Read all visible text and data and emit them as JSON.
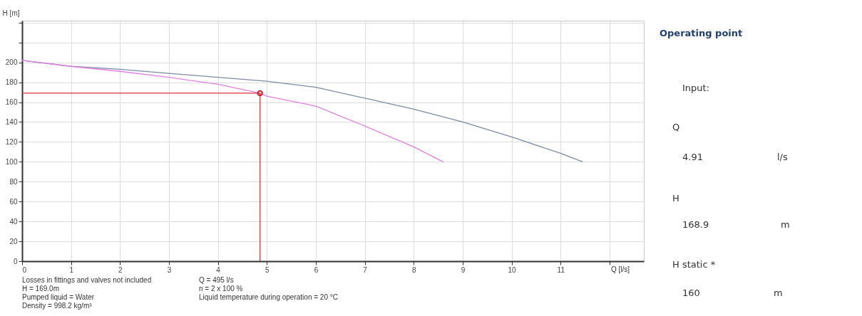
{
  "chart_data": [
    {
      "type": "line",
      "xlabel": "Q [l/s]",
      "ylabel": "H [m]",
      "xlim": [
        0,
        12.7
      ],
      "ylim": [
        0,
        242
      ],
      "xticks": [
        0,
        1,
        2,
        3,
        4,
        5,
        6,
        7,
        8,
        9,
        10,
        11,
        {
          "value": 12,
          "label": null
        }
      ],
      "yticks": [
        0,
        20,
        40,
        60,
        80,
        100,
        120,
        140,
        160,
        180,
        200,
        {
          "value": 220,
          "label": null
        },
        {
          "value": 240,
          "label": null
        }
      ],
      "grid": true,
      "series": [
        {
          "type": "line",
          "color": "#7d8ca3",
          "x": [
            0,
            1,
            2,
            3,
            4,
            5,
            6,
            7,
            8,
            9,
            10,
            11,
            11.45
          ],
          "values": [
            202,
            196,
            193,
            189,
            185,
            181,
            175,
            164,
            153,
            140,
            125,
            108.5,
            100
          ]
        },
        {
          "type": "line",
          "color": "#e27fe2",
          "x": [
            0,
            1,
            2,
            3,
            4,
            4.86,
            5,
            6,
            7,
            8,
            8.6
          ],
          "values": [
            202,
            196,
            191,
            185,
            178,
            169,
            166,
            156,
            136,
            115,
            100
          ]
        },
        {
          "type": "line",
          "color": "#e0303a",
          "x": [
            0,
            4.86
          ],
          "values": [
            169,
            169
          ]
        },
        {
          "type": "line",
          "color": "#e0303a",
          "x": [
            4.86,
            4.86
          ],
          "values": [
            169,
            0
          ]
        },
        {
          "type": "scatter",
          "marker": "circle",
          "color": "#d0202a",
          "x": [
            4.86
          ],
          "values": [
            169
          ]
        }
      ],
      "annotations": [
        "Losses in fittings and valves not included",
        "H = 169.0m",
        "Pumped liquid = Water",
        "Density = 998.2 kg/m³",
        "Q =  495 l/s",
        "n = 2 x 100 %",
        "Liquid temperature during operation = 20 °C"
      ]
    },
    {
      "type": "other",
      "title": "Operating point",
      "annotations": [
        "Input:",
        "Q",
        "4.91",
        "l/s",
        "H",
        "168.9",
        "m",
        "H static *",
        "160",
        "m"
      ]
    }
  ]
}
